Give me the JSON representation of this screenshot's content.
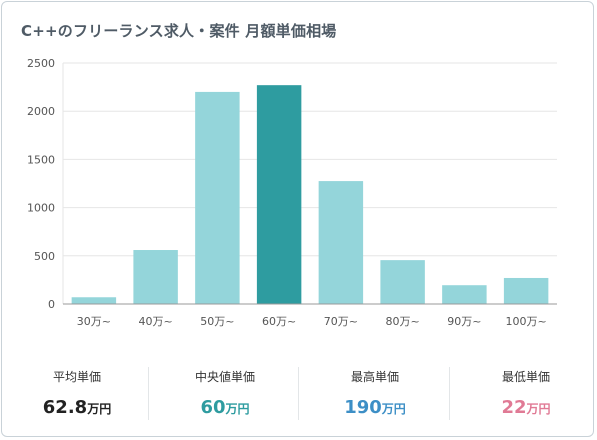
{
  "title": "C++のフリーランス求人・案件 月額単価相場",
  "chart_data": {
    "type": "bar",
    "categories": [
      "30万~",
      "40万~",
      "50万~",
      "60万~",
      "70万~",
      "80万~",
      "90万~",
      "100万~"
    ],
    "values": [
      70,
      560,
      2200,
      2270,
      1275,
      455,
      195,
      270
    ],
    "highlight_index": 3,
    "ylim": [
      0,
      2500
    ],
    "yticks": [
      0,
      500,
      1000,
      1500,
      2000,
      2500
    ],
    "grid": true,
    "colors": {
      "bar": "#94d5da",
      "highlight": "#2e9ca0",
      "grid": "#e6e6e6",
      "axis": "#999999"
    }
  },
  "stats": [
    {
      "label": "平均単価",
      "value": "62.8",
      "unit": "万円",
      "color": "#222222"
    },
    {
      "label": "中央値単価",
      "value": "60",
      "unit": "万円",
      "color": "#2e9ca0"
    },
    {
      "label": "最高単価",
      "value": "190",
      "unit": "万円",
      "color": "#3d8fc6"
    },
    {
      "label": "最低単価",
      "value": "22",
      "unit": "万円",
      "color": "#e07a95"
    }
  ]
}
